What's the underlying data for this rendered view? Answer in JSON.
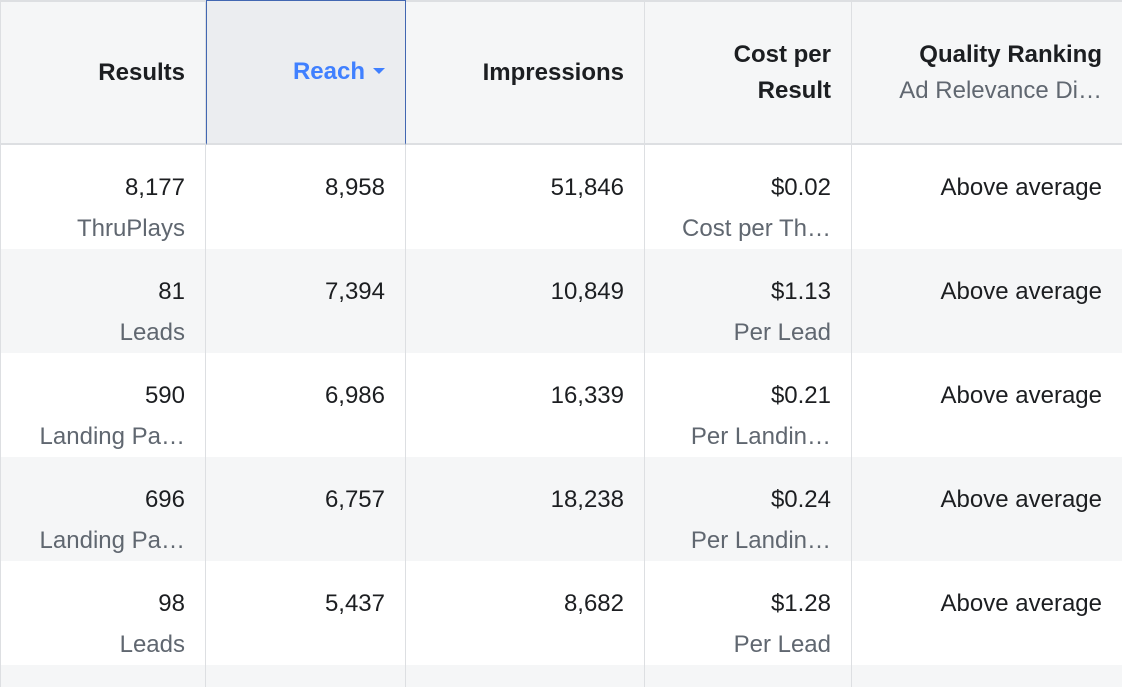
{
  "columns": {
    "results": {
      "label": "Results"
    },
    "reach": {
      "label": "Reach"
    },
    "impressions": {
      "label": "Impressions"
    },
    "cost_per_result": {
      "label_line1": "Cost per",
      "label_line2": "Result"
    },
    "quality_ranking": {
      "label": "Quality Ranking",
      "sublabel": "Ad Relevance Di…"
    }
  },
  "rows": [
    {
      "results": "8,177",
      "results_type": "ThruPlays",
      "reach": "8,958",
      "impressions": "51,846",
      "cost": "$0.02",
      "cost_type": "Cost per Th…",
      "quality": "Above average"
    },
    {
      "results": "81",
      "results_type": "Leads",
      "reach": "7,394",
      "impressions": "10,849",
      "cost": "$1.13",
      "cost_type": "Per Lead",
      "quality": "Above average"
    },
    {
      "results": "590",
      "results_type": "Landing Pa…",
      "reach": "6,986",
      "impressions": "16,339",
      "cost": "$0.21",
      "cost_type": "Per Landin…",
      "quality": "Above average"
    },
    {
      "results": "696",
      "results_type": "Landing Pa…",
      "reach": "6,757",
      "impressions": "18,238",
      "cost": "$0.24",
      "cost_type": "Per Landin…",
      "quality": "Above average"
    },
    {
      "results": "98",
      "results_type": "Leads",
      "reach": "5,437",
      "impressions": "8,682",
      "cost": "$1.28",
      "cost_type": "Per Lead",
      "quality": "Above average"
    }
  ],
  "sort": {
    "column": "reach",
    "direction": "descending"
  },
  "colors": {
    "accent": "#4080ff",
    "header_bg": "#f5f6f7",
    "sorted_header_bg": "#ebedf0",
    "border": "#dddfe2"
  }
}
